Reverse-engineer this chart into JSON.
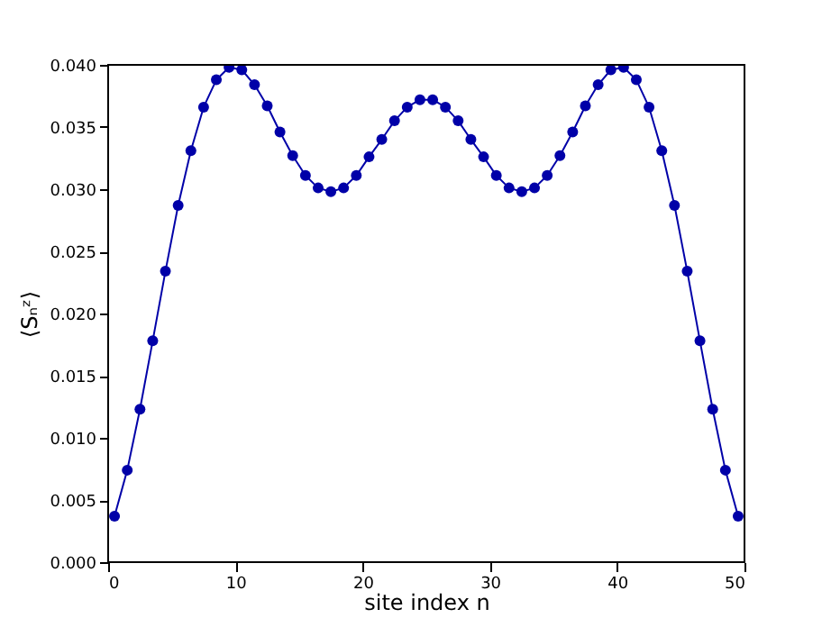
{
  "chart_data": {
    "type": "line",
    "xlabel": "site index   n",
    "ylabel": "⟨Sₙᶻ⟩",
    "marker": "circle",
    "grid": false,
    "x": [
      0.5,
      1.5,
      2.5,
      3.5,
      4.5,
      5.5,
      6.5,
      7.5,
      8.5,
      9.5,
      10.5,
      11.5,
      12.5,
      13.5,
      14.5,
      15.5,
      16.5,
      17.5,
      18.5,
      19.5,
      20.5,
      21.5,
      22.5,
      23.5,
      24.5,
      25.5,
      26.5,
      27.5,
      28.5,
      29.5,
      30.5,
      31.5,
      32.5,
      33.5,
      34.5,
      35.5,
      36.5,
      37.5,
      38.5,
      39.5,
      40.5,
      41.5,
      42.5,
      43.5,
      44.5,
      45.5,
      46.5,
      47.5,
      48.5,
      49.5
    ],
    "series": [
      {
        "color": "#0000a8",
        "values": [
          0.0037,
          0.0074,
          0.0123,
          0.0178,
          0.0234,
          0.0287,
          0.0331,
          0.0366,
          0.0388,
          0.0398,
          0.0396,
          0.0384,
          0.0367,
          0.0346,
          0.0327,
          0.0311,
          0.0301,
          0.0298,
          0.0301,
          0.0311,
          0.0326,
          0.034,
          0.0355,
          0.0366,
          0.0372,
          0.0372,
          0.0366,
          0.0355,
          0.034,
          0.0326,
          0.0311,
          0.0301,
          0.0298,
          0.0301,
          0.0311,
          0.0327,
          0.0346,
          0.0367,
          0.0384,
          0.0396,
          0.0398,
          0.0388,
          0.0366,
          0.0331,
          0.0287,
          0.0234,
          0.0178,
          0.0123,
          0.0074,
          0.0037
        ]
      }
    ],
    "xlim": [
      0,
      50
    ],
    "xticks": [
      0,
      10,
      20,
      30,
      40,
      50
    ],
    "ylim": [
      0,
      0.04
    ],
    "yticks": [
      {
        "value": 0,
        "label": "0.000"
      },
      {
        "value": 0.005,
        "label": "0.005"
      },
      {
        "value": 0.01,
        "label": "0.010"
      },
      {
        "value": 0.015,
        "label": "0.015"
      },
      {
        "value": 0.02,
        "label": "0.020"
      },
      {
        "value": 0.025,
        "label": "0.025"
      },
      {
        "value": 0.03,
        "label": "0.030"
      },
      {
        "value": 0.035,
        "label": "0.035"
      },
      {
        "value": 0.04,
        "label": "0.040"
      }
    ]
  }
}
